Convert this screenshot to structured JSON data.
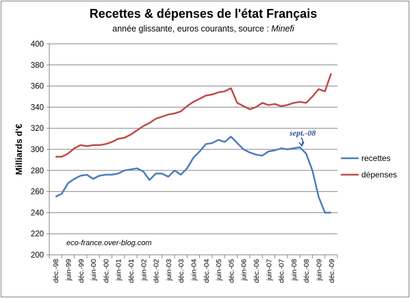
{
  "chart_data": {
    "type": "line",
    "title": "Recettes & dépenses  de l'état Français",
    "subtitle": "année glissante, euros courants, source : ",
    "subtitle_source": "Minefi",
    "ylabel": "Milliards d'€",
    "xlabel": "",
    "ylim": [
      200,
      400
    ],
    "yticks": [
      "200",
      "220",
      "240",
      "260",
      "280",
      "300",
      "320",
      "340",
      "360",
      "380",
      "400"
    ],
    "xtick_labels": [
      "déc.-98",
      "juin-99",
      "déc.-99",
      "juin-00",
      "déc.-00",
      "juin-01",
      "déc.-01",
      "juin-02",
      "déc.-02",
      "juin-03",
      "déc.-03",
      "juin-04",
      "déc.-04",
      "juin-05",
      "déc.-05",
      "juin-06",
      "déc.-06",
      "juin-07",
      "déc.-07",
      "juin-08",
      "déc.-08",
      "juin-09",
      "déc.-09"
    ],
    "grid": true,
    "legend_position": "right",
    "annotation": "sept.-08",
    "watermark": "eco-france.over-blog.com",
    "colors": {
      "recettes": "#4a7ebb",
      "depenses": "#be4b48",
      "annotation": "#2f5597",
      "grid": "#868686"
    },
    "series": [
      {
        "name": "recettes",
        "color": "#4a7ebb",
        "x": [
          "déc.-98",
          "mars-99",
          "juin-99",
          "sept.-99",
          "déc.-99",
          "mars-00",
          "juin-00",
          "sept.-00",
          "déc.-00",
          "mars-01",
          "juin-01",
          "sept.-01",
          "déc.-01",
          "mars-02",
          "juin-02",
          "sept.-02",
          "déc.-02",
          "mars-03",
          "juin-03",
          "sept.-03",
          "déc.-03",
          "mars-04",
          "juin-04",
          "sept.-04",
          "déc.-04",
          "mars-05",
          "juin-05",
          "sept.-05",
          "déc.-05",
          "mars-06",
          "juin-06",
          "sept.-06",
          "déc.-06",
          "mars-07",
          "juin-07",
          "sept.-07",
          "déc.-07",
          "mars-08",
          "juin-08",
          "sept.-08",
          "déc.-08",
          "mars-09",
          "juin-09",
          "sept.-09",
          "déc.-09"
        ],
        "values": [
          255,
          258,
          268,
          272,
          275,
          276,
          272,
          275,
          276,
          276,
          277,
          280,
          281,
          282,
          279,
          271,
          277,
          277,
          274,
          280,
          276,
          282,
          292,
          298,
          305,
          306,
          309,
          307,
          312,
          306,
          300,
          297,
          295,
          294,
          298,
          299,
          301,
          300,
          301,
          302,
          296,
          280,
          255,
          240,
          240
        ]
      },
      {
        "name": "dépenses",
        "color": "#be4b48",
        "x": [
          "déc.-98",
          "mars-99",
          "juin-99",
          "sept.-99",
          "déc.-99",
          "mars-00",
          "juin-00",
          "sept.-00",
          "déc.-00",
          "mars-01",
          "juin-01",
          "sept.-01",
          "déc.-01",
          "mars-02",
          "juin-02",
          "sept.-02",
          "déc.-02",
          "mars-03",
          "juin-03",
          "sept.-03",
          "déc.-03",
          "mars-04",
          "juin-04",
          "sept.-04",
          "déc.-04",
          "mars-05",
          "juin-05",
          "sept.-05",
          "déc.-05",
          "mars-06",
          "juin-06",
          "sept.-06",
          "déc.-06",
          "mars-07",
          "juin-07",
          "sept.-07",
          "déc.-07",
          "mars-08",
          "juin-08",
          "sept.-08",
          "déc.-08",
          "mars-09",
          "juin-09",
          "sept.-09",
          "déc.-09"
        ],
        "values": [
          293,
          293,
          296,
          301,
          304,
          303,
          304,
          304,
          305,
          307,
          310,
          311,
          314,
          318,
          322,
          325,
          329,
          331,
          333,
          334,
          336,
          341,
          345,
          348,
          351,
          352,
          354,
          355,
          358,
          344,
          341,
          338,
          340,
          344,
          342,
          343,
          341,
          342,
          344,
          345,
          344,
          350,
          357,
          355,
          372
        ]
      }
    ]
  }
}
